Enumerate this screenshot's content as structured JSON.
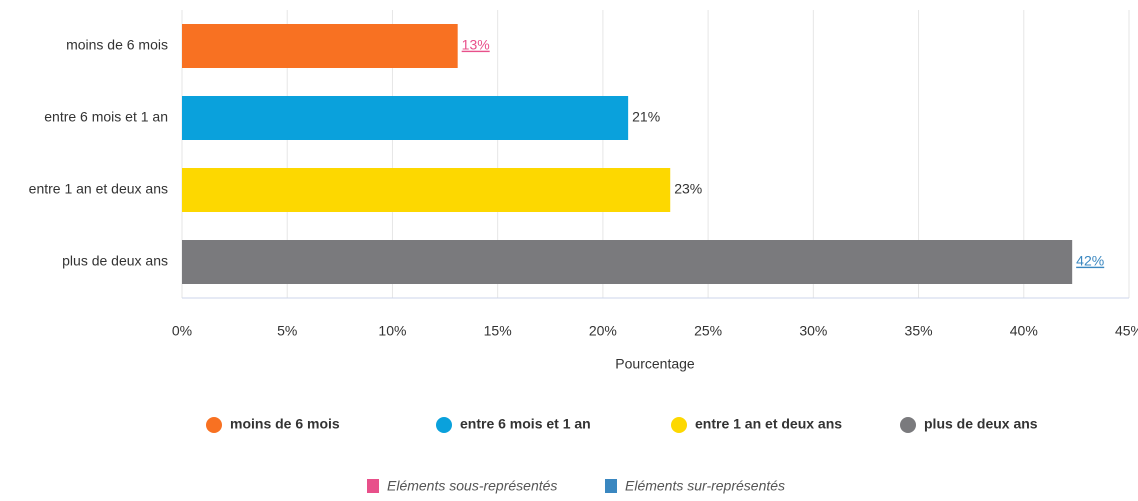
{
  "chart_data": {
    "type": "bar",
    "orientation": "horizontal",
    "categories": [
      "moins de 6 mois",
      "entre 6 mois et 1 an",
      "entre 1 an et deux ans",
      "plus de deux ans"
    ],
    "values": [
      13.1,
      21.2,
      23.2,
      42.3
    ],
    "value_labels": [
      "13%",
      "21%",
      "23%",
      "42%"
    ],
    "value_label_colors": [
      "#e8508a",
      "#333333",
      "#333333",
      "#3a87c0"
    ],
    "colors": [
      "#f87122",
      "#0aa1dc",
      "#fdd800",
      "#7a7a7d"
    ],
    "xlabel": "Pourcentage",
    "xlim": [
      0,
      45
    ],
    "xticks": [
      {
        "value": 0,
        "label": "0%"
      },
      {
        "value": 5,
        "label": "5%"
      },
      {
        "value": 10,
        "label": "10%"
      },
      {
        "value": 15,
        "label": "15%"
      },
      {
        "value": 20,
        "label": "20%"
      },
      {
        "value": 25,
        "label": "25%"
      },
      {
        "value": 30,
        "label": "30%"
      },
      {
        "value": 35,
        "label": "35%"
      },
      {
        "value": 40,
        "label": "40%"
      },
      {
        "value": 45,
        "label": "45%"
      }
    ],
    "grid": true,
    "legend": "bottom",
    "notes": [
      {
        "text": "Eléments sous-représentés",
        "color": "#e8508a"
      },
      {
        "text": "Eléments sur-représentés",
        "color": "#3a87c0"
      }
    ]
  }
}
